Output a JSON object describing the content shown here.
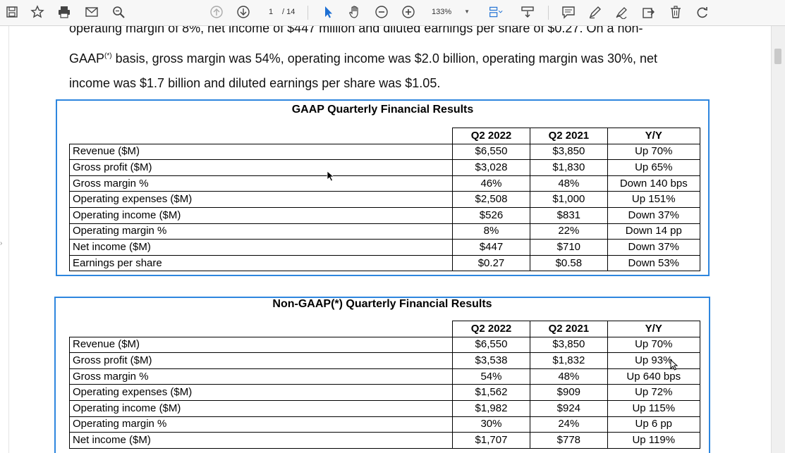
{
  "toolbar": {
    "page_current": "1",
    "page_total": "/ 14",
    "zoom": "133%",
    "icons": [
      "save-icon",
      "bookmark-star-icon",
      "print-icon",
      "email-icon",
      "search-zoom-icon",
      "page-up-icon",
      "page-down-icon",
      "zoom-out-icon",
      "zoom-in-icon",
      "select-arrow-icon",
      "hand-icon",
      "fit-page-icon",
      "scroll-mode-icon",
      "comment-icon",
      "highlight-pen-icon",
      "sign-icon",
      "export-icon",
      "delete-icon",
      "redo-icon"
    ]
  },
  "paragraph": {
    "line1": "operating margin of 8%, net income of $447 million and diluted earnings per share of $0.27. On a non-",
    "line2_a": "GAAP",
    "line2_sup": "(*)",
    "line2_b": " basis, gross margin was 54%, operating income was $2.0 billion, operating margin was 30%, net",
    "line3": "income was $1.7 billion and diluted earnings per share was $1.05."
  },
  "gaap": {
    "title": "GAAP Quarterly Financial Results",
    "headers": [
      "",
      "Q2 2022",
      "Q2 2021",
      "Y/Y"
    ],
    "rows": [
      [
        "Revenue ($M)",
        "$6,550",
        "$3,850",
        "Up 70%"
      ],
      [
        "Gross profit ($M)",
        "$3,028",
        "$1,830",
        "Up 65%"
      ],
      [
        "Gross margin %",
        "46%",
        "48%",
        "Down 140 bps"
      ],
      [
        "Operating expenses ($M)",
        "$2,508",
        "$1,000",
        "Up 151%"
      ],
      [
        "Operating income ($M)",
        "$526",
        "$831",
        "Down 37%"
      ],
      [
        "Operating margin %",
        "8%",
        "22%",
        "Down 14 pp"
      ],
      [
        "Net income ($M)",
        "$447",
        "$710",
        "Down 37%"
      ],
      [
        "Earnings per share",
        "$0.27",
        "$0.58",
        "Down 53%"
      ]
    ]
  },
  "nongaap": {
    "title": "Non-GAAP(*) Quarterly Financial Results",
    "headers": [
      "",
      "Q2 2022",
      "Q2 2021",
      "Y/Y"
    ],
    "rows": [
      [
        "Revenue ($M)",
        "$6,550",
        "$3,850",
        "Up 70%"
      ],
      [
        "Gross profit ($M)",
        "$3,538",
        "$1,832",
        "Up 93%"
      ],
      [
        "Gross margin %",
        "54%",
        "48%",
        "Up 640 bps"
      ],
      [
        "Operating expenses ($M)",
        "$1,562",
        "$909",
        "Up 72%"
      ],
      [
        "Operating income ($M)",
        "$1,982",
        "$924",
        "Up 115%"
      ],
      [
        "Operating margin %",
        "30%",
        "24%",
        "Up 6 pp"
      ],
      [
        "Net income ($M)",
        "$1,707",
        "$778",
        "Up 119%"
      ]
    ]
  }
}
